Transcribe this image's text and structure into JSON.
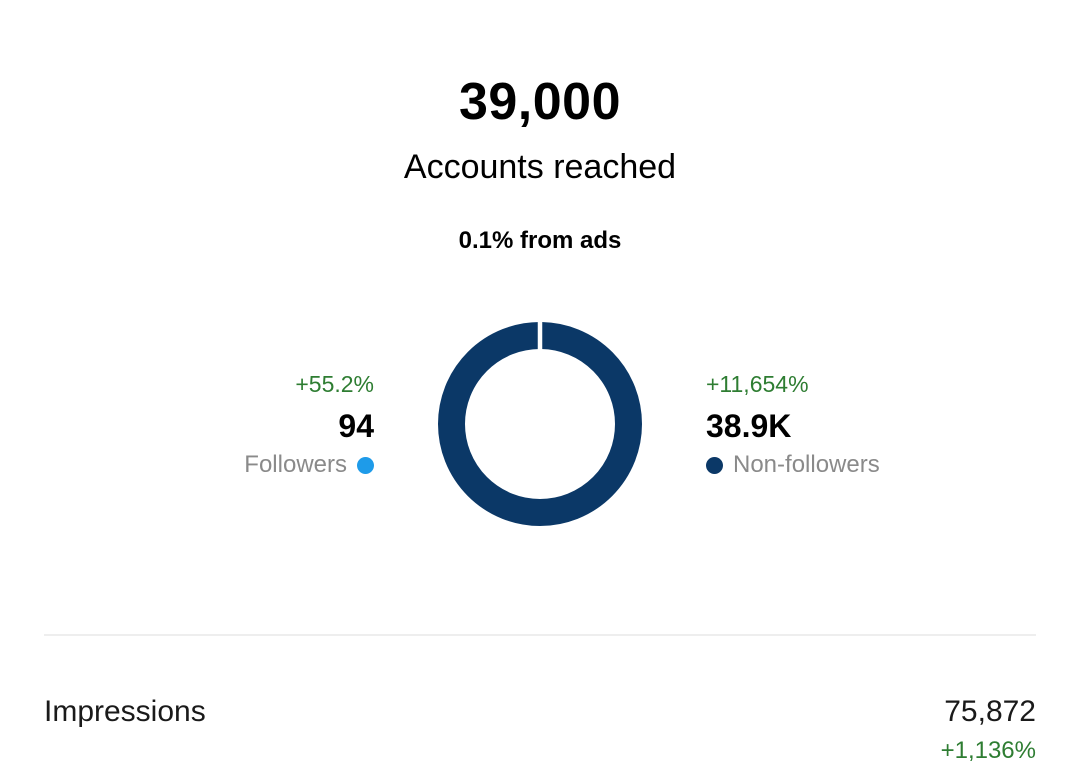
{
  "reach": {
    "total": "39,000",
    "label": "Accounts reached",
    "ads_note": "0.1% from ads"
  },
  "followers": {
    "change": "+55.2%",
    "value": "94",
    "label": "Followers",
    "color": "#1e9be9"
  },
  "non_followers": {
    "change": "+11,654%",
    "value": "38.9K",
    "label": "Non-followers",
    "color": "#0b3867"
  },
  "impressions": {
    "label": "Impressions",
    "value": "75,872",
    "change": "+1,136%"
  },
  "chart_data": {
    "type": "pie",
    "categories": [
      "Followers",
      "Non-followers"
    ],
    "values": [
      94,
      38900
    ],
    "colors": [
      "#1e9be9",
      "#0b3867"
    ]
  }
}
